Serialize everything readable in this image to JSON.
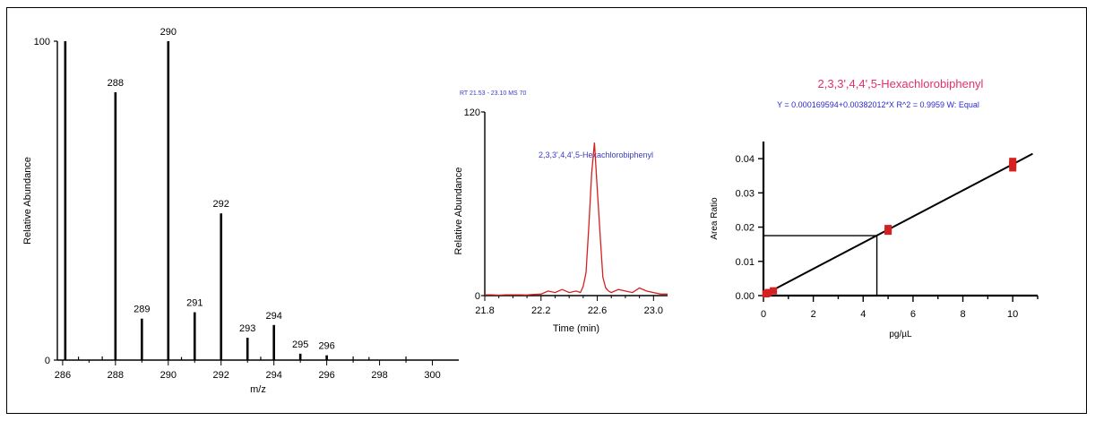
{
  "chart_data": [
    {
      "type": "bar",
      "xlabel": "m/z",
      "ylabel": "Relative Abundance",
      "xlim": [
        285.8,
        301.0
      ],
      "ylim": [
        0,
        100
      ],
      "y_ticks": [
        "0",
        "100"
      ],
      "x_ticks": [
        "286",
        "288",
        "290",
        "292",
        "294",
        "296",
        "298",
        "300"
      ],
      "peaks": [
        {
          "x": 286.1,
          "y": 100,
          "label": ""
        },
        {
          "x": 288.0,
          "y": 84,
          "label": "288"
        },
        {
          "x": 289.0,
          "y": 13,
          "label": "289"
        },
        {
          "x": 290.0,
          "y": 100,
          "label": "290"
        },
        {
          "x": 291.0,
          "y": 15,
          "label": "291"
        },
        {
          "x": 292.0,
          "y": 46,
          "label": "292"
        },
        {
          "x": 293.0,
          "y": 7,
          "label": "293"
        },
        {
          "x": 294.0,
          "y": 11,
          "label": "294"
        },
        {
          "x": 295.0,
          "y": 2,
          "label": "295"
        },
        {
          "x": 296.0,
          "y": 1.5,
          "label": "296"
        }
      ],
      "noise": [
        {
          "x": 286.6,
          "y": 0.5
        },
        {
          "x": 287.5,
          "y": 0.6
        },
        {
          "x": 290.5,
          "y": 0.4
        },
        {
          "x": 293.5,
          "y": 0.5
        },
        {
          "x": 297.0,
          "y": 0.6
        },
        {
          "x": 297.6,
          "y": 0.4
        },
        {
          "x": 299.0,
          "y": 0.6
        }
      ]
    },
    {
      "type": "line",
      "header": "RT 21.53 - 23.10 MS 70",
      "annotation": "2,3,3',4,4',5-Hexachlorobiphenyl",
      "xlabel": "Time (min)",
      "ylabel": "Relative Abundance",
      "xlim": [
        21.8,
        23.1
      ],
      "ylim": [
        0,
        120
      ],
      "y_ticks": [
        "0",
        "120"
      ],
      "x_ticks": [
        "21.8",
        "22.2",
        "22.6",
        "23.0"
      ],
      "x": [
        21.8,
        21.85,
        21.9,
        21.95,
        22.0,
        22.05,
        22.1,
        22.15,
        22.2,
        22.25,
        22.3,
        22.35,
        22.4,
        22.45,
        22.48,
        22.5,
        22.52,
        22.54,
        22.56,
        22.58,
        22.6,
        22.62,
        22.64,
        22.66,
        22.68,
        22.7,
        22.75,
        22.8,
        22.85,
        22.9,
        22.95,
        23.0,
        23.05,
        23.1
      ],
      "y": [
        0.5,
        0.5,
        0.3,
        0.5,
        0.5,
        0.5,
        0.4,
        0.8,
        1,
        3,
        2,
        4,
        2,
        3,
        2,
        6,
        15,
        45,
        80,
        100,
        70,
        40,
        12,
        5,
        3,
        2,
        4,
        3,
        2,
        5,
        3,
        2,
        1,
        1
      ],
      "color": "#d62020"
    },
    {
      "type": "scatter",
      "title": "2,3,3',4,4',5-Hexachlorobiphenyl",
      "equation": "Y = 0.000169594+0.00382012*X   R^2 = 0.9959   W: Equal",
      "xlabel": "pg/µL",
      "ylabel": "Area Ratio",
      "xlim": [
        0,
        11
      ],
      "ylim": [
        0,
        0.045
      ],
      "x_ticks": [
        "0",
        "2",
        "4",
        "6",
        "8",
        "10"
      ],
      "y_ticks": [
        "0.00",
        "0.01",
        "0.02",
        "0.03",
        "0.04"
      ],
      "fit": {
        "intercept": 0.000169594,
        "slope": 0.00382012
      },
      "points": [
        {
          "x": 0.1,
          "y": 0.0005
        },
        {
          "x": 0.2,
          "y": 0.0009
        },
        {
          "x": 0.4,
          "y": 0.0014
        },
        {
          "x": 5.0,
          "y": 0.0188
        },
        {
          "x": 5.0,
          "y": 0.0196
        },
        {
          "x": 10.0,
          "y": 0.0373
        },
        {
          "x": 10.0,
          "y": 0.0383
        },
        {
          "x": 10.0,
          "y": 0.0392
        }
      ],
      "unknown": {
        "x": 4.55,
        "y": 0.0175
      },
      "title_color": "#e0306a",
      "equation_color": "#2a2ad0",
      "point_color": "#d42020"
    }
  ]
}
